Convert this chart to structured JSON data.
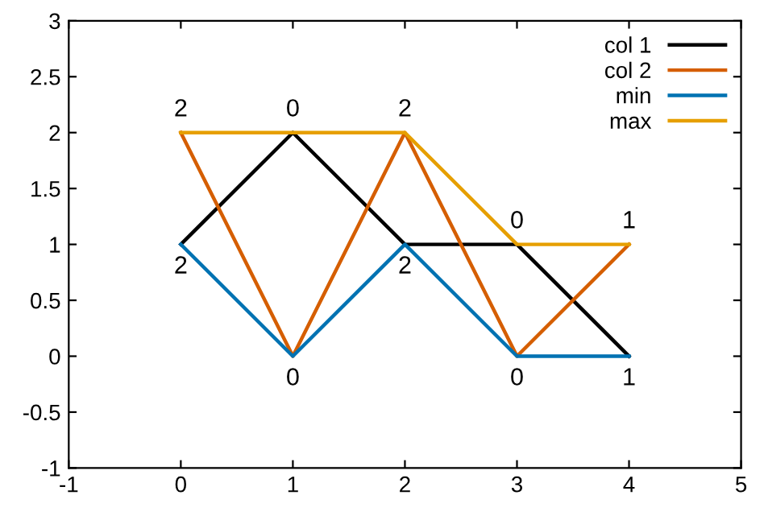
{
  "chart_data": {
    "type": "line",
    "x": [
      0,
      1,
      2,
      3,
      4
    ],
    "series": [
      {
        "name": "col 1",
        "color": "#000000",
        "values": [
          1,
          2,
          1,
          1,
          0
        ]
      },
      {
        "name": "col 2",
        "color": "#d55e00",
        "values": [
          2,
          0,
          2,
          0,
          1
        ]
      },
      {
        "name": "min",
        "color": "#0072b2",
        "values": [
          1,
          0,
          1,
          0,
          0
        ]
      },
      {
        "name": "max",
        "color": "#e69f00",
        "values": [
          2,
          2,
          2,
          1,
          1
        ]
      }
    ],
    "annotations": [
      {
        "text": "2",
        "x": 0,
        "y": 2
      },
      {
        "text": "0",
        "x": 1,
        "y": 2
      },
      {
        "text": "2",
        "x": 2,
        "y": 2
      },
      {
        "text": "0",
        "x": 3,
        "y": 1
      },
      {
        "text": "1",
        "x": 4,
        "y": 1
      },
      {
        "text": "2",
        "x": 0,
        "y": 1
      },
      {
        "text": "0",
        "x": 1,
        "y": 0
      },
      {
        "text": "2",
        "x": 2,
        "y": 1
      },
      {
        "text": "0",
        "x": 3,
        "y": 0
      },
      {
        "text": "1",
        "x": 4,
        "y": 0
      }
    ],
    "xlim": [
      -1,
      5
    ],
    "xticks": [
      -1,
      0,
      1,
      2,
      3,
      4,
      5
    ],
    "ylim": [
      -1,
      3
    ],
    "yticks": [
      -1,
      -0.5,
      0,
      0.5,
      1,
      1.5,
      2,
      2.5,
      3
    ],
    "legend": "top right",
    "grid": false
  }
}
